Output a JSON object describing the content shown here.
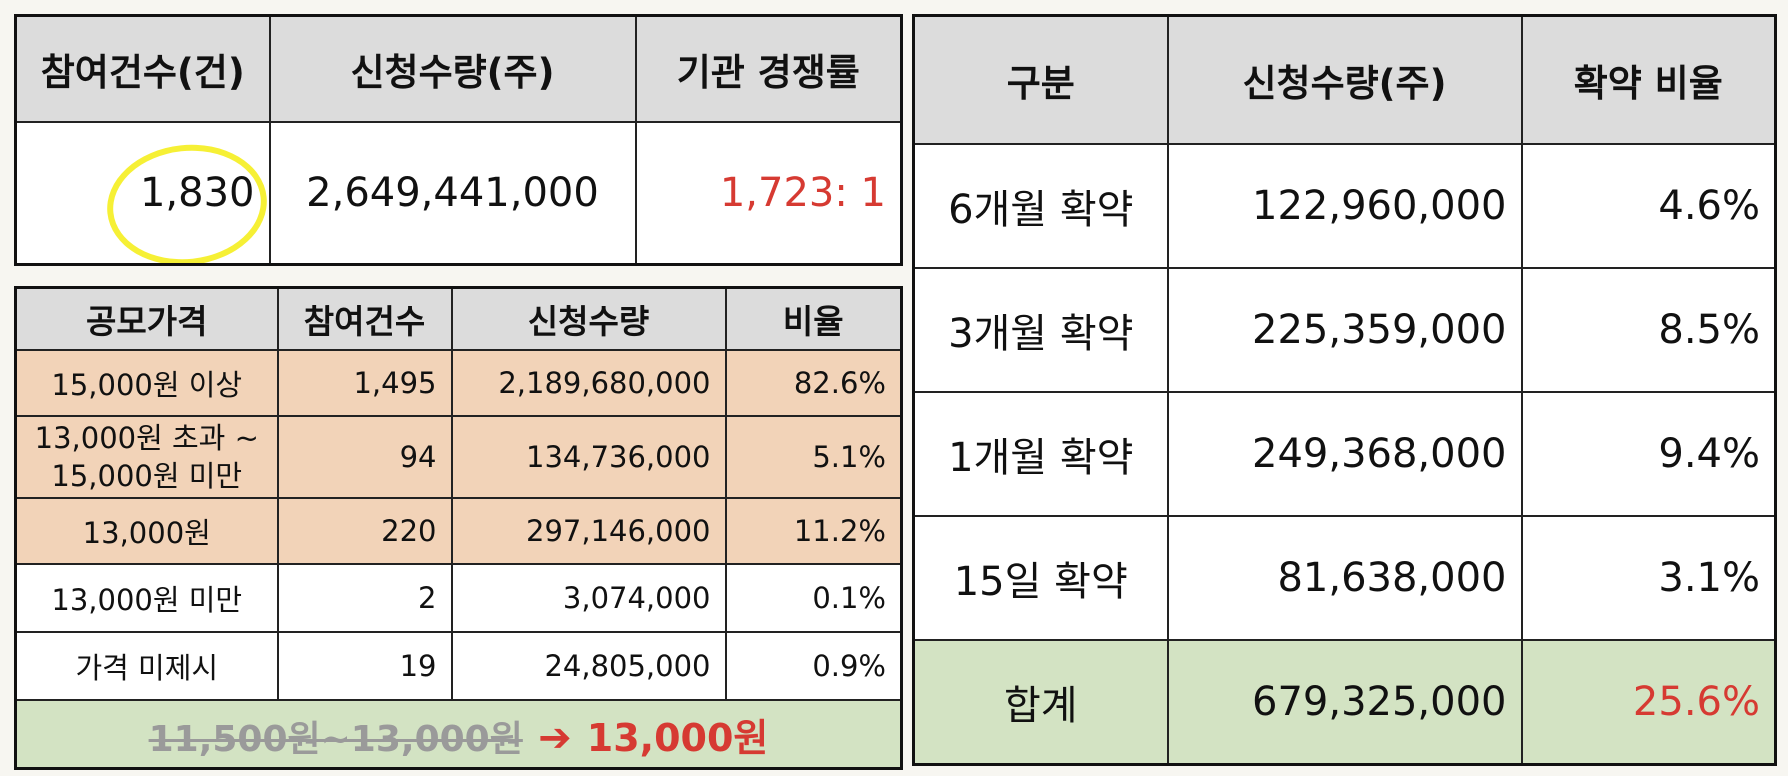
{
  "summary": {
    "headers": [
      "참여건수(건)",
      "신청수량(주)",
      "기관 경쟁률"
    ],
    "participation": "1,830",
    "quantity": "2,649,441,000",
    "competition": "1,723: 1"
  },
  "price_table": {
    "headers": [
      "공모가격",
      "참여건수",
      "신청수량",
      "비율"
    ],
    "rows": [
      {
        "price": "15,000원 이상",
        "count": "1,495",
        "quantity": "2,189,680,000",
        "ratio": "82.6%"
      },
      {
        "price": "13,000원 초과 ~ 15,000원 미만",
        "count": "94",
        "quantity": "134,736,000",
        "ratio": "5.1%"
      },
      {
        "price": "13,000원",
        "count": "220",
        "quantity": "297,146,000",
        "ratio": "11.2%"
      },
      {
        "price": "13,000원 미만",
        "count": "2",
        "quantity": "3,074,000",
        "ratio": "0.1%"
      },
      {
        "price": "가격 미제시",
        "count": "19",
        "quantity": "24,805,000",
        "ratio": "0.9%"
      }
    ],
    "footer": {
      "old_band": "11,500원~13,000원",
      "arrow": "➔",
      "final_price": "13,000원"
    }
  },
  "lockup_table": {
    "headers": [
      "구분",
      "신청수량(주)",
      "확약 비율"
    ],
    "rows": [
      {
        "label": "6개월 확약",
        "quantity": "122,960,000",
        "ratio": "4.6%"
      },
      {
        "label": "3개월 확약",
        "quantity": "225,359,000",
        "ratio": "8.5%"
      },
      {
        "label": "1개월 확약",
        "quantity": "249,368,000",
        "ratio": "9.4%"
      },
      {
        "label": "15일 확약",
        "quantity": "81,638,000",
        "ratio": "3.1%"
      }
    ],
    "total": {
      "label": "합계",
      "quantity": "679,325,000",
      "ratio": "25.6%"
    }
  },
  "colors": {
    "header_bg": "#dcdcdc",
    "peach_bg": "#f2d3b8",
    "green_bg": "#d3e3c3",
    "accent_red": "#d63a32",
    "highlight_yellow": "#f6f035"
  }
}
